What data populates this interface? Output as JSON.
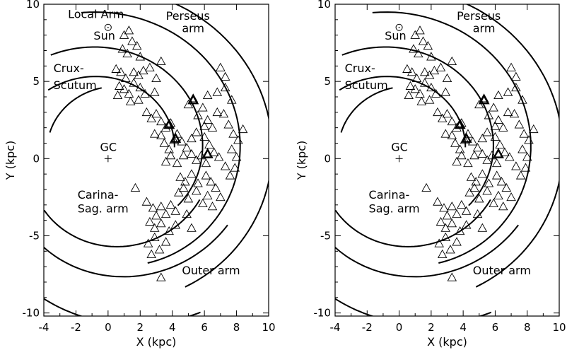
{
  "chart_data": [
    {
      "type": "scatter",
      "xlabel": "X (kpc)",
      "ylabel": "Y (kpc)",
      "xlim": [
        -4,
        10
      ],
      "ylim": [
        -10.2,
        10
      ],
      "xticks": [
        "-4",
        "-2",
        "0",
        "2",
        "4",
        "6",
        "8",
        "10"
      ],
      "yticks": [
        "10",
        "5",
        "0",
        "-5",
        "-10"
      ],
      "annotations": {
        "local_arm": "Local Arm",
        "sun": "Sun",
        "perseus": [
          "Perseus",
          "arm"
        ],
        "crux": [
          "Crux-",
          "Scutum"
        ],
        "gc": "GC",
        "carina": [
          "Carina-",
          "Sag. arm"
        ],
        "outer": "Outer arm"
      },
      "sun_position": [
        0,
        8.5
      ],
      "gc_position": [
        0,
        0
      ],
      "points": [
        [
          1.0,
          8.0
        ],
        [
          1.3,
          8.3
        ],
        [
          1.5,
          7.6
        ],
        [
          1.8,
          7.3
        ],
        [
          0.9,
          7.1
        ],
        [
          1.2,
          6.8
        ],
        [
          2.0,
          6.6
        ],
        [
          0.5,
          5.8
        ],
        [
          0.8,
          5.6
        ],
        [
          1.1,
          5.2
        ],
        [
          1.6,
          5.6
        ],
        [
          1.9,
          5.4
        ],
        [
          2.2,
          5.7
        ],
        [
          2.6,
          5.9
        ],
        [
          3.0,
          5.2
        ],
        [
          3.3,
          6.3
        ],
        [
          0.7,
          4.7
        ],
        [
          1.0,
          4.5
        ],
        [
          1.3,
          4.2
        ],
        [
          1.6,
          4.9
        ],
        [
          2.0,
          4.6
        ],
        [
          2.3,
          4.2
        ],
        [
          0.6,
          4.1
        ],
        [
          1.4,
          3.7
        ],
        [
          1.9,
          3.8
        ],
        [
          2.9,
          4.3
        ],
        [
          2.4,
          3.0
        ],
        [
          2.7,
          2.6
        ],
        [
          3.0,
          2.9
        ],
        [
          3.3,
          2.4
        ],
        [
          3.6,
          2.0
        ],
        [
          3.9,
          2.3
        ],
        [
          2.9,
          1.6
        ],
        [
          3.3,
          1.5
        ],
        [
          3.5,
          1.0
        ],
        [
          3.8,
          0.6
        ],
        [
          4.1,
          1.2
        ],
        [
          4.3,
          1.6
        ],
        [
          4.6,
          1.1
        ],
        [
          4.9,
          0.7
        ],
        [
          5.2,
          1.3
        ],
        [
          5.5,
          1.7
        ],
        [
          3.6,
          -0.2
        ],
        [
          3.9,
          0.2
        ],
        [
          4.3,
          -0.3
        ],
        [
          4.7,
          0.2
        ],
        [
          5.2,
          0.3
        ],
        [
          5.5,
          -0.1
        ],
        [
          5.8,
          0.2
        ],
        [
          6.1,
          -0.3
        ],
        [
          4.5,
          -1.2
        ],
        [
          4.8,
          -1.5
        ],
        [
          5.2,
          -1.0
        ],
        [
          5.6,
          -1.6
        ],
        [
          6.1,
          -1.1
        ],
        [
          6.4,
          -1.5
        ],
        [
          6.7,
          -1.9
        ],
        [
          7.0,
          -2.5
        ],
        [
          5.0,
          3.5
        ],
        [
          5.3,
          3.9
        ],
        [
          5.6,
          2.8
        ],
        [
          5.9,
          3.3
        ],
        [
          6.2,
          2.5
        ],
        [
          6.5,
          2.0
        ],
        [
          6.0,
          1.4
        ],
        [
          6.3,
          0.9
        ],
        [
          6.6,
          0.4
        ],
        [
          6.9,
          0.1
        ],
        [
          7.2,
          2.9
        ],
        [
          7.5,
          2.2
        ],
        [
          7.8,
          1.6
        ],
        [
          8.1,
          1.2
        ],
        [
          8.4,
          1.9
        ],
        [
          7.7,
          0.6
        ],
        [
          8.0,
          0.1
        ],
        [
          7.3,
          -0.5
        ],
        [
          7.6,
          -1.1
        ],
        [
          7.9,
          -0.6
        ],
        [
          6.8,
          4.3
        ],
        [
          7.3,
          4.6
        ],
        [
          7.7,
          3.8
        ],
        [
          7.0,
          5.9
        ],
        [
          7.3,
          5.3
        ],
        [
          6.2,
          4.1
        ],
        [
          6.0,
          2.1
        ],
        [
          6.8,
          3.0
        ],
        [
          1.7,
          -1.9
        ],
        [
          2.4,
          -2.8
        ],
        [
          2.8,
          -3.2
        ],
        [
          3.0,
          -3.7
        ],
        [
          3.3,
          -3.1
        ],
        [
          3.6,
          -3.6
        ],
        [
          3.9,
          -3.0
        ],
        [
          4.2,
          -3.4
        ],
        [
          2.6,
          -4.1
        ],
        [
          2.9,
          -4.5
        ],
        [
          3.3,
          -4.2
        ],
        [
          3.8,
          -4.7
        ],
        [
          4.2,
          -4.3
        ],
        [
          2.5,
          -5.5
        ],
        [
          2.9,
          -5.1
        ],
        [
          3.2,
          -5.9
        ],
        [
          3.6,
          -5.4
        ],
        [
          2.7,
          -6.2
        ],
        [
          3.3,
          -7.7
        ],
        [
          4.4,
          -2.2
        ],
        [
          5.0,
          -2.6
        ],
        [
          5.5,
          -2.1
        ],
        [
          6.2,
          -2.4
        ],
        [
          6.5,
          -3.1
        ],
        [
          4.9,
          -3.6
        ],
        [
          5.2,
          -4.5
        ],
        [
          4.7,
          -1.9
        ],
        [
          5.9,
          -2.9
        ]
      ],
      "bold_points": [
        [
          5.3,
          3.8
        ],
        [
          3.8,
          2.2
        ],
        [
          4.2,
          1.3
        ],
        [
          6.2,
          0.3
        ]
      ]
    },
    {
      "type": "scatter",
      "xlabel": "X (kpc)",
      "ylabel": "Y (kpc)",
      "xlim": [
        -4,
        10
      ],
      "ylim": [
        -10.2,
        10
      ],
      "xticks": [
        "-4",
        "-2",
        "0",
        "2",
        "4",
        "6",
        "8",
        "10"
      ],
      "yticks": [
        "10",
        "5",
        "0",
        "-5",
        "-10"
      ],
      "annotations": {
        "local_arm": "",
        "sun": "Sun",
        "perseus": [
          "Perseus",
          "arm"
        ],
        "crux": [
          "Crux-",
          "Scutum"
        ],
        "gc": "GC",
        "carina": [
          "Carina-",
          "Sag. arm"
        ],
        "outer": "Outer arm"
      },
      "sun_position": [
        0,
        8.5
      ],
      "gc_position": [
        0,
        0
      ],
      "points": [
        [
          1.0,
          8.0
        ],
        [
          1.3,
          8.3
        ],
        [
          1.5,
          7.6
        ],
        [
          1.8,
          7.3
        ],
        [
          0.9,
          7.1
        ],
        [
          1.2,
          6.8
        ],
        [
          2.0,
          6.6
        ],
        [
          0.5,
          5.8
        ],
        [
          0.8,
          5.6
        ],
        [
          1.1,
          5.2
        ],
        [
          1.6,
          5.6
        ],
        [
          1.9,
          5.4
        ],
        [
          2.2,
          5.7
        ],
        [
          2.6,
          5.9
        ],
        [
          3.0,
          5.2
        ],
        [
          3.3,
          6.3
        ],
        [
          0.7,
          4.7
        ],
        [
          1.0,
          4.5
        ],
        [
          1.3,
          4.2
        ],
        [
          1.6,
          4.9
        ],
        [
          2.0,
          4.6
        ],
        [
          2.3,
          4.2
        ],
        [
          0.6,
          4.1
        ],
        [
          1.4,
          3.7
        ],
        [
          1.9,
          3.8
        ],
        [
          2.9,
          4.3
        ],
        [
          2.4,
          3.0
        ],
        [
          2.7,
          2.6
        ],
        [
          3.0,
          2.9
        ],
        [
          3.3,
          2.4
        ],
        [
          3.6,
          2.0
        ],
        [
          3.9,
          2.3
        ],
        [
          2.9,
          1.6
        ],
        [
          3.3,
          1.5
        ],
        [
          3.5,
          1.0
        ],
        [
          3.8,
          0.6
        ],
        [
          4.1,
          1.2
        ],
        [
          4.3,
          1.6
        ],
        [
          4.6,
          1.1
        ],
        [
          4.9,
          0.7
        ],
        [
          5.2,
          1.3
        ],
        [
          5.5,
          1.7
        ],
        [
          3.6,
          -0.2
        ],
        [
          3.9,
          0.2
        ],
        [
          4.3,
          -0.3
        ],
        [
          4.7,
          0.2
        ],
        [
          5.2,
          0.3
        ],
        [
          5.5,
          -0.1
        ],
        [
          5.8,
          0.2
        ],
        [
          6.1,
          -0.3
        ],
        [
          4.5,
          -1.2
        ],
        [
          4.8,
          -1.5
        ],
        [
          5.2,
          -1.0
        ],
        [
          5.6,
          -1.6
        ],
        [
          6.1,
          -1.1
        ],
        [
          6.4,
          -1.5
        ],
        [
          6.7,
          -1.9
        ],
        [
          7.0,
          -2.5
        ],
        [
          5.0,
          3.5
        ],
        [
          5.3,
          3.9
        ],
        [
          5.6,
          2.8
        ],
        [
          5.9,
          3.3
        ],
        [
          6.2,
          2.5
        ],
        [
          6.5,
          2.0
        ],
        [
          6.0,
          1.4
        ],
        [
          6.3,
          0.9
        ],
        [
          6.6,
          0.4
        ],
        [
          6.9,
          0.1
        ],
        [
          7.2,
          2.9
        ],
        [
          7.5,
          2.2
        ],
        [
          7.8,
          1.6
        ],
        [
          8.1,
          1.2
        ],
        [
          8.4,
          1.9
        ],
        [
          7.7,
          0.6
        ],
        [
          8.0,
          0.1
        ],
        [
          7.3,
          -0.5
        ],
        [
          7.6,
          -1.1
        ],
        [
          7.9,
          -0.6
        ],
        [
          6.8,
          4.3
        ],
        [
          7.3,
          4.6
        ],
        [
          7.7,
          3.8
        ],
        [
          7.0,
          5.9
        ],
        [
          7.3,
          5.3
        ],
        [
          6.2,
          4.1
        ],
        [
          6.0,
          2.1
        ],
        [
          6.8,
          3.0
        ],
        [
          1.7,
          -1.9
        ],
        [
          2.4,
          -2.8
        ],
        [
          2.8,
          -3.2
        ],
        [
          3.0,
          -3.7
        ],
        [
          3.3,
          -3.1
        ],
        [
          3.6,
          -3.6
        ],
        [
          3.9,
          -3.0
        ],
        [
          4.2,
          -3.4
        ],
        [
          2.6,
          -4.1
        ],
        [
          2.9,
          -4.5
        ],
        [
          3.3,
          -4.2
        ],
        [
          3.8,
          -4.7
        ],
        [
          4.2,
          -4.3
        ],
        [
          2.5,
          -5.5
        ],
        [
          2.9,
          -5.1
        ],
        [
          3.2,
          -5.9
        ],
        [
          3.6,
          -5.4
        ],
        [
          2.7,
          -6.2
        ],
        [
          3.3,
          -7.7
        ],
        [
          4.4,
          -2.2
        ],
        [
          5.0,
          -2.6
        ],
        [
          5.5,
          -2.1
        ],
        [
          6.2,
          -2.4
        ],
        [
          6.5,
          -3.1
        ],
        [
          4.9,
          -3.6
        ],
        [
          5.2,
          -4.5
        ],
        [
          4.7,
          -1.9
        ],
        [
          5.9,
          -2.9
        ]
      ],
      "bold_points": [
        [
          5.3,
          3.8
        ],
        [
          3.8,
          2.2
        ],
        [
          4.2,
          1.3
        ],
        [
          6.2,
          0.3
        ]
      ]
    }
  ]
}
